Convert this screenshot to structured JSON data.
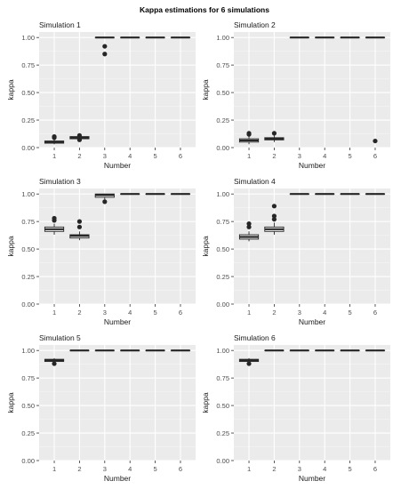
{
  "figure": {
    "title": "Kappa estimations for 6 simulations",
    "colors": {
      "panel_bg": "#ebebeb",
      "grid_major": "#ffffff",
      "grid_minor": "#f5f5f5",
      "ink": "#262626",
      "axis_text": "#4d4d4d"
    }
  },
  "chart_data": [
    {
      "type": "boxplot",
      "title": "Simulation 1",
      "xlabel": "Number",
      "ylabel": "kappa",
      "categories": [
        "1",
        "2",
        "3",
        "4",
        "5",
        "6"
      ],
      "ylim": [
        0.0,
        1.05
      ],
      "yticks": [
        "0.00",
        "0.25",
        "0.50",
        "0.75",
        "1.00"
      ],
      "grid": true,
      "boxes": [
        {
          "q1": 0.04,
          "median": 0.05,
          "q3": 0.06,
          "whisker_low": 0.03,
          "whisker_high": 0.08,
          "outliers": [
            0.09,
            0.1
          ]
        },
        {
          "q1": 0.08,
          "median": 0.09,
          "q3": 0.1,
          "whisker_low": 0.06,
          "whisker_high": 0.12,
          "outliers": [
            0.07,
            0.11
          ]
        },
        {
          "q1": 1.0,
          "median": 1.0,
          "q3": 1.0,
          "whisker_low": 1.0,
          "whisker_high": 1.0,
          "outliers": [
            0.85,
            0.92
          ]
        },
        {
          "q1": 1.0,
          "median": 1.0,
          "q3": 1.0,
          "whisker_low": 1.0,
          "whisker_high": 1.0,
          "outliers": []
        },
        {
          "q1": 1.0,
          "median": 1.0,
          "q3": 1.0,
          "whisker_low": 1.0,
          "whisker_high": 1.0,
          "outliers": []
        },
        {
          "q1": 1.0,
          "median": 1.0,
          "q3": 1.0,
          "whisker_low": 1.0,
          "whisker_high": 1.0,
          "outliers": []
        }
      ]
    },
    {
      "type": "boxplot",
      "title": "Simulation 2",
      "xlabel": "Number",
      "ylabel": "kappa",
      "categories": [
        "1",
        "2",
        "3",
        "4",
        "5",
        "6"
      ],
      "ylim": [
        0.0,
        1.05
      ],
      "yticks": [
        "0.00",
        "0.25",
        "0.50",
        "0.75",
        "1.00"
      ],
      "grid": true,
      "boxes": [
        {
          "q1": 0.05,
          "median": 0.065,
          "q3": 0.08,
          "whisker_low": 0.03,
          "whisker_high": 0.11,
          "outliers": [
            0.12,
            0.13
          ]
        },
        {
          "q1": 0.07,
          "median": 0.08,
          "q3": 0.09,
          "whisker_low": 0.05,
          "whisker_high": 0.12,
          "outliers": [
            0.13
          ]
        },
        {
          "q1": 1.0,
          "median": 1.0,
          "q3": 1.0,
          "whisker_low": 1.0,
          "whisker_high": 1.0,
          "outliers": []
        },
        {
          "q1": 1.0,
          "median": 1.0,
          "q3": 1.0,
          "whisker_low": 1.0,
          "whisker_high": 1.0,
          "outliers": []
        },
        {
          "q1": 1.0,
          "median": 1.0,
          "q3": 1.0,
          "whisker_low": 1.0,
          "whisker_high": 1.0,
          "outliers": []
        },
        {
          "q1": 1.0,
          "median": 1.0,
          "q3": 1.0,
          "whisker_low": 1.0,
          "whisker_high": 1.0,
          "outliers": [
            0.06
          ]
        }
      ]
    },
    {
      "type": "boxplot",
      "title": "Simulation 3",
      "xlabel": "Number",
      "ylabel": "kappa",
      "categories": [
        "1",
        "2",
        "3",
        "4",
        "5",
        "6"
      ],
      "ylim": [
        0.0,
        1.05
      ],
      "yticks": [
        "0.00",
        "0.25",
        "0.50",
        "0.75",
        "1.00"
      ],
      "grid": true,
      "boxes": [
        {
          "q1": 0.66,
          "median": 0.68,
          "q3": 0.7,
          "whisker_low": 0.63,
          "whisker_high": 0.73,
          "outliers": [
            0.76,
            0.78
          ]
        },
        {
          "q1": 0.6,
          "median": 0.62,
          "q3": 0.63,
          "whisker_low": 0.58,
          "whisker_high": 0.66,
          "outliers": [
            0.7,
            0.75
          ]
        },
        {
          "q1": 0.97,
          "median": 0.99,
          "q3": 1.0,
          "whisker_low": 0.94,
          "whisker_high": 1.0,
          "outliers": [
            0.93
          ]
        },
        {
          "q1": 1.0,
          "median": 1.0,
          "q3": 1.0,
          "whisker_low": 1.0,
          "whisker_high": 1.0,
          "outliers": []
        },
        {
          "q1": 1.0,
          "median": 1.0,
          "q3": 1.0,
          "whisker_low": 1.0,
          "whisker_high": 1.0,
          "outliers": []
        },
        {
          "q1": 1.0,
          "median": 1.0,
          "q3": 1.0,
          "whisker_low": 1.0,
          "whisker_high": 1.0,
          "outliers": []
        }
      ]
    },
    {
      "type": "boxplot",
      "title": "Simulation 4",
      "xlabel": "Number",
      "ylabel": "kappa",
      "categories": [
        "1",
        "2",
        "3",
        "4",
        "5",
        "6"
      ],
      "ylim": [
        0.0,
        1.05
      ],
      "yticks": [
        "0.00",
        "0.25",
        "0.50",
        "0.75",
        "1.00"
      ],
      "grid": true,
      "boxes": [
        {
          "q1": 0.59,
          "median": 0.61,
          "q3": 0.63,
          "whisker_low": 0.57,
          "whisker_high": 0.66,
          "outliers": [
            0.7,
            0.73
          ]
        },
        {
          "q1": 0.66,
          "median": 0.68,
          "q3": 0.7,
          "whisker_low": 0.63,
          "whisker_high": 0.74,
          "outliers": [
            0.77,
            0.8,
            0.89
          ]
        },
        {
          "q1": 1.0,
          "median": 1.0,
          "q3": 1.0,
          "whisker_low": 1.0,
          "whisker_high": 1.0,
          "outliers": []
        },
        {
          "q1": 1.0,
          "median": 1.0,
          "q3": 1.0,
          "whisker_low": 1.0,
          "whisker_high": 1.0,
          "outliers": []
        },
        {
          "q1": 1.0,
          "median": 1.0,
          "q3": 1.0,
          "whisker_low": 1.0,
          "whisker_high": 1.0,
          "outliers": []
        },
        {
          "q1": 1.0,
          "median": 1.0,
          "q3": 1.0,
          "whisker_low": 1.0,
          "whisker_high": 1.0,
          "outliers": []
        }
      ]
    },
    {
      "type": "boxplot",
      "title": "Simulation 5",
      "xlabel": "Number",
      "ylabel": "kappa",
      "categories": [
        "1",
        "2",
        "3",
        "4",
        "5",
        "6"
      ],
      "ylim": [
        0.0,
        1.05
      ],
      "yticks": [
        "0.00",
        "0.25",
        "0.50",
        "0.75",
        "1.00"
      ],
      "grid": true,
      "boxes": [
        {
          "q1": 0.9,
          "median": 0.91,
          "q3": 0.92,
          "whisker_low": 0.89,
          "whisker_high": 0.93,
          "outliers": [
            0.88
          ]
        },
        {
          "q1": 1.0,
          "median": 1.0,
          "q3": 1.0,
          "whisker_low": 1.0,
          "whisker_high": 1.0,
          "outliers": []
        },
        {
          "q1": 1.0,
          "median": 1.0,
          "q3": 1.0,
          "whisker_low": 1.0,
          "whisker_high": 1.0,
          "outliers": []
        },
        {
          "q1": 1.0,
          "median": 1.0,
          "q3": 1.0,
          "whisker_low": 1.0,
          "whisker_high": 1.0,
          "outliers": []
        },
        {
          "q1": 1.0,
          "median": 1.0,
          "q3": 1.0,
          "whisker_low": 1.0,
          "whisker_high": 1.0,
          "outliers": []
        },
        {
          "q1": 1.0,
          "median": 1.0,
          "q3": 1.0,
          "whisker_low": 1.0,
          "whisker_high": 1.0,
          "outliers": []
        }
      ]
    },
    {
      "type": "boxplot",
      "title": "Simulation 6",
      "xlabel": "Number",
      "ylabel": "kappa",
      "categories": [
        "1",
        "2",
        "3",
        "4",
        "5",
        "6"
      ],
      "ylim": [
        0.0,
        1.05
      ],
      "yticks": [
        "0.00",
        "0.25",
        "0.50",
        "0.75",
        "1.00"
      ],
      "grid": true,
      "boxes": [
        {
          "q1": 0.9,
          "median": 0.91,
          "q3": 0.92,
          "whisker_low": 0.89,
          "whisker_high": 0.93,
          "outliers": [
            0.88
          ]
        },
        {
          "q1": 1.0,
          "median": 1.0,
          "q3": 1.0,
          "whisker_low": 1.0,
          "whisker_high": 1.0,
          "outliers": []
        },
        {
          "q1": 1.0,
          "median": 1.0,
          "q3": 1.0,
          "whisker_low": 1.0,
          "whisker_high": 1.0,
          "outliers": []
        },
        {
          "q1": 1.0,
          "median": 1.0,
          "q3": 1.0,
          "whisker_low": 1.0,
          "whisker_high": 1.0,
          "outliers": []
        },
        {
          "q1": 1.0,
          "median": 1.0,
          "q3": 1.0,
          "whisker_low": 1.0,
          "whisker_high": 1.0,
          "outliers": []
        },
        {
          "q1": 1.0,
          "median": 1.0,
          "q3": 1.0,
          "whisker_low": 1.0,
          "whisker_high": 1.0,
          "outliers": []
        }
      ]
    }
  ]
}
